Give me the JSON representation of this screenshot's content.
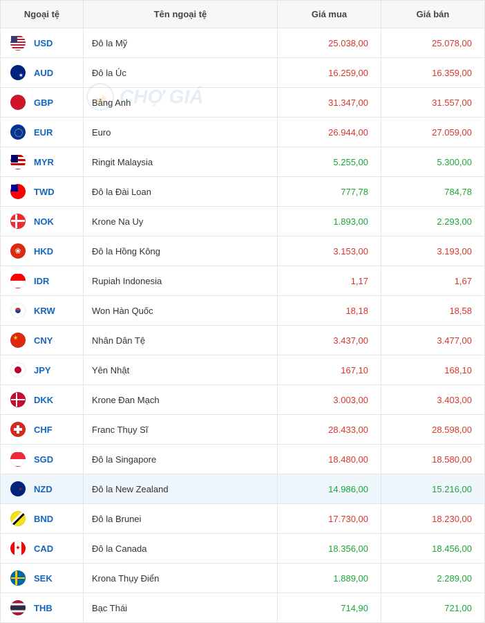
{
  "columns": {
    "code": "Ngoại tệ",
    "name": "Tên ngoại tệ",
    "buy": "Giá mua",
    "sell": "Giá bán"
  },
  "watermark_text": "CHỢ GIÁ",
  "color_up": "#1da537",
  "color_down": "#d9362b",
  "highlight_row_index": 15,
  "rows": [
    {
      "code": "USD",
      "name": "Đô la Mỹ",
      "buy": "25.038,00",
      "sell": "25.078,00",
      "trend": "down"
    },
    {
      "code": "AUD",
      "name": "Đô la Úc",
      "buy": "16.259,00",
      "sell": "16.359,00",
      "trend": "down"
    },
    {
      "code": "GBP",
      "name": "Bảng Anh",
      "buy": "31.347,00",
      "sell": "31.557,00",
      "trend": "down"
    },
    {
      "code": "EUR",
      "name": "Euro",
      "buy": "26.944,00",
      "sell": "27.059,00",
      "trend": "down"
    },
    {
      "code": "MYR",
      "name": "Ringit Malaysia",
      "buy": "5.255,00",
      "sell": "5.300,00",
      "trend": "up"
    },
    {
      "code": "TWD",
      "name": "Đô la Đài Loan",
      "buy": "777,78",
      "sell": "784,78",
      "trend": "up"
    },
    {
      "code": "NOK",
      "name": "Krone Na Uy",
      "buy": "1.893,00",
      "sell": "2.293,00",
      "trend": "up"
    },
    {
      "code": "HKD",
      "name": "Đô la Hồng Kông",
      "buy": "3.153,00",
      "sell": "3.193,00",
      "trend": "down"
    },
    {
      "code": "IDR",
      "name": "Rupiah Indonesia",
      "buy": "1,17",
      "sell": "1,67",
      "trend": "down"
    },
    {
      "code": "KRW",
      "name": "Won Hàn Quốc",
      "buy": "18,18",
      "sell": "18,58",
      "trend": "down"
    },
    {
      "code": "CNY",
      "name": "Nhân Dân Tệ",
      "buy": "3.437,00",
      "sell": "3.477,00",
      "trend": "down"
    },
    {
      "code": "JPY",
      "name": "Yên Nhật",
      "buy": "167,10",
      "sell": "168,10",
      "trend": "down"
    },
    {
      "code": "DKK",
      "name": "Krone Đan Mạch",
      "buy": "3.003,00",
      "sell": "3.403,00",
      "trend": "down"
    },
    {
      "code": "CHF",
      "name": "Franc Thụy Sĩ",
      "buy": "28.433,00",
      "sell": "28.598,00",
      "trend": "down"
    },
    {
      "code": "SGD",
      "name": "Đô la Singapore",
      "buy": "18.480,00",
      "sell": "18.580,00",
      "trend": "down"
    },
    {
      "code": "NZD",
      "name": "Đô la New Zealand",
      "buy": "14.986,00",
      "sell": "15.216,00",
      "trend": "up"
    },
    {
      "code": "BND",
      "name": "Đô la Brunei",
      "buy": "17.730,00",
      "sell": "18.230,00",
      "trend": "down"
    },
    {
      "code": "CAD",
      "name": "Đô la Canada",
      "buy": "18.356,00",
      "sell": "18.456,00",
      "trend": "up"
    },
    {
      "code": "SEK",
      "name": "Krona Thụy Điển",
      "buy": "1.889,00",
      "sell": "2.289,00",
      "trend": "up"
    },
    {
      "code": "THB",
      "name": "Bạc Thái",
      "buy": "714,90",
      "sell": "721,00",
      "trend": "up"
    }
  ]
}
